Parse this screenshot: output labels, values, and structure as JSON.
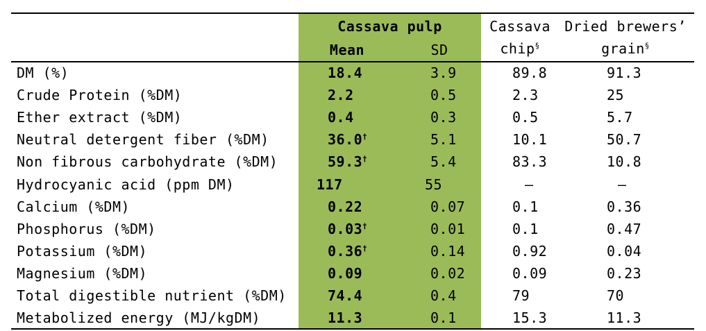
{
  "headers": {
    "cassava_pulp": "Cassava pulp",
    "mean": "Mean",
    "sd": "SD",
    "cassava_chip_line1": "Cassava",
    "cassava_chip_line2": "chip",
    "cassava_chip_mark": "§",
    "brewers_line1": "Dried brewers’",
    "brewers_line2": "grain",
    "brewers_mark": "§"
  },
  "rows": [
    {
      "label": "DM (%)",
      "mean": "18.4",
      "mark": "",
      "sd": "3.9",
      "chip": "89.8",
      "grain": "91.3"
    },
    {
      "label": "Crude Protein (%DM)",
      "mean": "2.2",
      "mark": "",
      "sd": "0.5",
      "chip": "2.3",
      "grain": "25"
    },
    {
      "label": "Ether extract (%DM)",
      "mean": "0.4",
      "mark": "",
      "sd": "0.3",
      "chip": "0.5",
      "grain": "5.7"
    },
    {
      "label": "Neutral detergent fiber (%DM)",
      "mean": "36.0",
      "mark": "†",
      "sd": "5.1",
      "chip": "10.1",
      "grain": "50.7"
    },
    {
      "label": "Non fibrous carbohydrate (%DM)",
      "mean": "59.3",
      "mark": "†",
      "sd": "5.4",
      "chip": "83.3",
      "grain": "10.8"
    },
    {
      "label": "Hydrocyanic acid (ppm DM)",
      "mean": "117",
      "mark": "",
      "sd": "55",
      "chip": "–",
      "grain": "–"
    },
    {
      "label": "Calcium (%DM)",
      "mean": "0.22",
      "mark": "",
      "sd": "0.07",
      "chip": "0.1",
      "grain": "0.36"
    },
    {
      "label": "Phosphorus (%DM)",
      "mean": "0.03",
      "mark": "†",
      "sd": "0.01",
      "chip": "0.1",
      "grain": "0.47"
    },
    {
      "label": "Potassium (%DM)",
      "mean": "0.36",
      "mark": "†",
      "sd": "0.14",
      "chip": "0.92",
      "grain": "0.04"
    },
    {
      "label": "Magnesium (%DM)",
      "mean": "0.09",
      "mark": "",
      "sd": "0.02",
      "chip": "0.09",
      "grain": "0.23"
    },
    {
      "label": "Total digestible nutrient (%DM)",
      "mean": "74.4",
      "mark": "",
      "sd": "0.4",
      "chip": "79",
      "grain": "70"
    },
    {
      "label": "Metabolized energy (MJ/kgDM)",
      "mean": "11.3",
      "mark": "",
      "sd": "0.1",
      "chip": "15.3",
      "grain": "11.3"
    }
  ],
  "colors": {
    "cassava_pulp_bg": "#9bbb59"
  }
}
